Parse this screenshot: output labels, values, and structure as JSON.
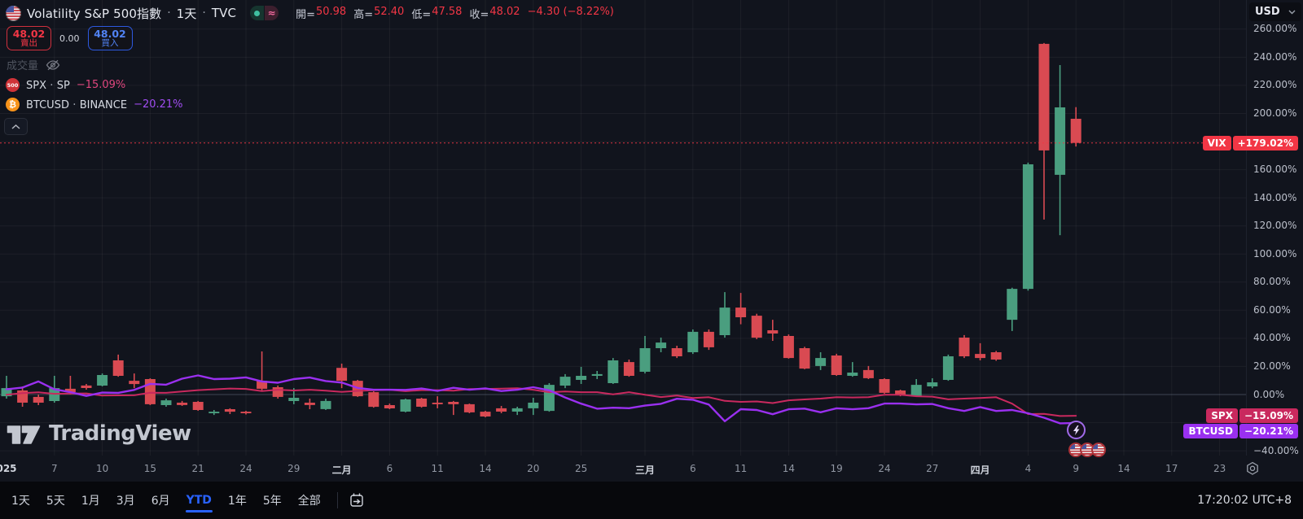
{
  "header": {
    "flag_icon": "us-flag",
    "title": "Volatility S&P 500指數",
    "sep": "·",
    "interval": "1天",
    "exchange": "TVC",
    "status_pills": {
      "market_open": "dot",
      "delayed": "≈"
    },
    "ohlc": {
      "open_label": "開=",
      "open": "50.98",
      "high_label": "高=",
      "high": "52.40",
      "low_label": "低=",
      "low": "47.58",
      "close_label": "收=",
      "close": "48.02",
      "change": "−4.30 (−8.22%)"
    },
    "order_panel": {
      "sell_price": "48.02",
      "sell_label": "賣出",
      "spread": "0.00",
      "buy_price": "48.02",
      "buy_label": "買入"
    },
    "volume_label": "成交量",
    "compare_series": [
      {
        "symbol": "SPX",
        "source": "SP",
        "change": "−15.09%",
        "icon_text": "500"
      },
      {
        "symbol": "BTCUSD",
        "source": "BINANCE",
        "change": "−20.21%",
        "icon_text": "₿"
      }
    ]
  },
  "watermark": {
    "text": "TradingView"
  },
  "price_scale": {
    "currency": "USD",
    "ticks_pct": [
      260,
      240,
      220,
      200,
      160,
      140,
      120,
      100,
      80,
      60,
      40,
      20,
      0,
      -40
    ],
    "badges": [
      {
        "label": "VIX",
        "value": "+179.02%",
        "pct": 179.02,
        "color": "#f23645"
      },
      {
        "label": "SPX",
        "value": "−15.09%",
        "pct": -15.09,
        "color": "#c9295e"
      },
      {
        "label": "BTCUSD",
        "value": "−20.21%",
        "pct": -20.21,
        "color": "#9a30f0"
      }
    ]
  },
  "time_axis": {
    "ticks": [
      {
        "bar": 0,
        "text": "025",
        "month": true
      },
      {
        "bar": 3,
        "text": "7"
      },
      {
        "bar": 6,
        "text": "10"
      },
      {
        "bar": 9,
        "text": "15"
      },
      {
        "bar": 12,
        "text": "21"
      },
      {
        "bar": 15,
        "text": "24"
      },
      {
        "bar": 18,
        "text": "29"
      },
      {
        "bar": 21,
        "text": "二月",
        "month": true
      },
      {
        "bar": 24,
        "text": "6"
      },
      {
        "bar": 27,
        "text": "11"
      },
      {
        "bar": 30,
        "text": "14"
      },
      {
        "bar": 33,
        "text": "20"
      },
      {
        "bar": 36,
        "text": "25"
      },
      {
        "bar": 40,
        "text": "三月",
        "month": true
      },
      {
        "bar": 43,
        "text": "6"
      },
      {
        "bar": 46,
        "text": "11"
      },
      {
        "bar": 49,
        "text": "14"
      },
      {
        "bar": 52,
        "text": "19"
      },
      {
        "bar": 55,
        "text": "24"
      },
      {
        "bar": 58,
        "text": "27"
      },
      {
        "bar": 61,
        "text": "四月",
        "month": true
      },
      {
        "bar": 64,
        "text": "4"
      },
      {
        "bar": 67,
        "text": "9"
      },
      {
        "bar": 70,
        "text": "14"
      },
      {
        "bar": 73,
        "text": "17"
      },
      {
        "bar": 76,
        "text": "23"
      }
    ]
  },
  "toolbar": {
    "ranges": [
      "1天",
      "5天",
      "1月",
      "3月",
      "6月",
      "YTD",
      "1年",
      "5年",
      "全部"
    ],
    "active_range": "YTD",
    "clock": "17:20:02 UTC+8"
  },
  "chart_data": {
    "type": "candlestick",
    "symbol": "VIX",
    "exchange": "TVC",
    "interval": "1天",
    "value_scale": "percent change YTD",
    "unit": "%",
    "ylim": [
      -43,
      281
    ],
    "grid": true,
    "last_close_pct": 179.02,
    "colors": {
      "up": "#4a9e7f",
      "down": "#d94a52",
      "close_line": "#f23645"
    },
    "dates": [
      "01-02",
      "01-03",
      "01-06",
      "01-07",
      "01-08",
      "01-09",
      "01-10",
      "01-13",
      "01-14",
      "01-15",
      "01-16",
      "01-17",
      "01-21",
      "01-22",
      "01-23",
      "01-24",
      "01-27",
      "01-28",
      "01-29",
      "01-30",
      "01-31",
      "02-03",
      "02-04",
      "02-05",
      "02-06",
      "02-07",
      "02-10",
      "02-11",
      "02-12",
      "02-13",
      "02-14",
      "02-18",
      "02-19",
      "02-20",
      "02-21",
      "02-24",
      "02-25",
      "02-26",
      "02-27",
      "02-28",
      "03-03",
      "03-04",
      "03-05",
      "03-06",
      "03-07",
      "03-10",
      "03-11",
      "03-12",
      "03-13",
      "03-14",
      "03-17",
      "03-18",
      "03-19",
      "03-20",
      "03-21",
      "03-24",
      "03-25",
      "03-26",
      "03-27",
      "03-28",
      "03-31",
      "04-01",
      "04-02",
      "04-03",
      "04-04",
      "04-07",
      "04-08",
      "04-09"
    ],
    "bars": [
      [
        -1.2,
        13.3,
        -2.9,
        4.6
      ],
      [
        2.9,
        5.8,
        -8.7,
        -5.8
      ],
      [
        -1.7,
        0.0,
        -7.5,
        -5.8
      ],
      [
        -4.6,
        13.3,
        -5.8,
        4.6
      ],
      [
        4.1,
        13.3,
        0.0,
        1.7
      ],
      [
        6.4,
        7.5,
        3.5,
        4.6
      ],
      [
        6.4,
        15.0,
        5.8,
        13.9
      ],
      [
        24.3,
        28.4,
        12.7,
        13.3
      ],
      [
        9.8,
        15.0,
        4.6,
        7.5
      ],
      [
        11.0,
        11.6,
        -7.5,
        -6.9
      ],
      [
        -7.5,
        -2.9,
        -8.7,
        -4.1
      ],
      [
        -5.8,
        -4.6,
        -8.1,
        -7.5
      ],
      [
        -5.2,
        -4.6,
        -11.6,
        -11.0
      ],
      [
        -13.3,
        -11.0,
        -14.5,
        -12.2
      ],
      [
        -10.4,
        -9.8,
        -13.9,
        -12.2
      ],
      [
        -12.2,
        -11.6,
        -14.2,
        -13.3
      ],
      [
        9.8,
        30.7,
        2.9,
        4.1
      ],
      [
        5.2,
        6.4,
        -2.9,
        -1.7
      ],
      [
        -4.6,
        4.6,
        -6.9,
        -2.3
      ],
      [
        -5.8,
        -2.9,
        -10.4,
        -7.5
      ],
      [
        -10.4,
        -2.9,
        -11.0,
        -4.6
      ],
      [
        19.0,
        22.0,
        4.6,
        9.8
      ],
      [
        9.8,
        10.4,
        -1.7,
        -1.2
      ],
      [
        1.7,
        2.3,
        -9.3,
        -8.7
      ],
      [
        -7.5,
        -6.4,
        -10.4,
        -9.8
      ],
      [
        -12.2,
        -2.9,
        -12.7,
        -3.5
      ],
      [
        -2.9,
        -2.3,
        -9.3,
        -8.7
      ],
      [
        -5.8,
        -1.2,
        -9.8,
        -6.9
      ],
      [
        -5.2,
        -4.6,
        -14.5,
        -6.9
      ],
      [
        -6.9,
        -6.4,
        -13.3,
        -12.7
      ],
      [
        -12.2,
        -11.6,
        -16.2,
        -15.6
      ],
      [
        -9.8,
        -8.1,
        -13.3,
        -12.2
      ],
      [
        -12.2,
        -8.7,
        -14.5,
        -9.8
      ],
      [
        -9.8,
        -2.3,
        -14.5,
        -5.8
      ],
      [
        -11.6,
        8.1,
        -12.2,
        6.9
      ],
      [
        6.4,
        14.5,
        4.6,
        12.7
      ],
      [
        10.4,
        19.7,
        7.5,
        13.3
      ],
      [
        13.3,
        16.8,
        11.0,
        14.5
      ],
      [
        8.1,
        26.0,
        7.5,
        24.3
      ],
      [
        23.1,
        24.9,
        12.7,
        13.3
      ],
      [
        16.2,
        41.7,
        15.0,
        33.0
      ],
      [
        33.0,
        40.5,
        30.1,
        37.0
      ],
      [
        33.0,
        34.7,
        26.0,
        27.2
      ],
      [
        30.1,
        46.3,
        28.9,
        44.6
      ],
      [
        44.6,
        46.3,
        31.8,
        33.6
      ],
      [
        42.3,
        72.9,
        40.5,
        61.9
      ],
      [
        61.9,
        72.3,
        50.0,
        55.0
      ],
      [
        56.1,
        57.5,
        39.4,
        40.5
      ],
      [
        45.7,
        53.2,
        38.2,
        43.4
      ],
      [
        41.7,
        42.8,
        25.5,
        26.0
      ],
      [
        33.0,
        34.0,
        18.0,
        18.5
      ],
      [
        20.3,
        30.1,
        17.4,
        26.0
      ],
      [
        27.8,
        29.0,
        13.3,
        13.9
      ],
      [
        13.3,
        23.1,
        12.7,
        15.6
      ],
      [
        17.4,
        20.3,
        11.0,
        11.6
      ],
      [
        11.0,
        11.6,
        0.6,
        1.2
      ],
      [
        2.9,
        3.5,
        -1.2,
        -0.6
      ],
      [
        -1.2,
        11.0,
        -1.7,
        6.9
      ],
      [
        5.8,
        11.6,
        4.6,
        8.7
      ],
      [
        10.4,
        28.4,
        9.8,
        27.2
      ],
      [
        40.5,
        42.3,
        26.0,
        27.2
      ],
      [
        28.9,
        36.5,
        24.3,
        26.0
      ],
      [
        30.1,
        31.0,
        24.0,
        24.9
      ],
      [
        53.2,
        76.0,
        45.2,
        75.2
      ],
      [
        75.2,
        165.0,
        74.0,
        163.8
      ],
      [
        249.5,
        250.1,
        124.5,
        173.7
      ],
      [
        156.3,
        234.4,
        113.4,
        204.3
      ],
      [
        196.2,
        204.5,
        176.5,
        179.0
      ]
    ],
    "overlays": [
      {
        "name": "SPX",
        "color": "#c9295e",
        "last": -15.09,
        "values": [
          -0.2,
          1.0,
          1.6,
          0.5,
          0.7,
          0.8,
          -0.7,
          -0.6,
          -0.5,
          1.3,
          1.2,
          2.2,
          3.1,
          3.7,
          4.3,
          4.0,
          2.5,
          3.4,
          2.9,
          3.4,
          2.7,
          1.9,
          2.6,
          3.0,
          3.4,
          2.4,
          3.1,
          3.1,
          2.8,
          3.9,
          4.0,
          4.2,
          4.5,
          3.4,
          1.7,
          2.2,
          1.7,
          1.7,
          0.1,
          1.7,
          -0.1,
          -1.8,
          -0.7,
          -2.5,
          -1.9,
          -4.5,
          -5.2,
          -4.9,
          -6.1,
          -4.1,
          -3.5,
          -2.9,
          -1.9,
          -2.1,
          -1.9,
          -0.2,
          -0.1,
          -1.2,
          -1.5,
          -3.4,
          -2.9,
          -2.5,
          -1.9,
          -6.5,
          -13.9,
          -13.7,
          -15.3,
          -15.1
        ]
      },
      {
        "name": "BTCUSD",
        "color": "#9a30f0",
        "last": -20.21,
        "values": [
          3.7,
          5.0,
          9.3,
          3.7,
          1.7,
          -1.0,
          1.4,
          1.2,
          3.3,
          7.6,
          7.0,
          11.3,
          13.6,
          11.0,
          11.3,
          12.2,
          9.3,
          8.4,
          11.0,
          12.1,
          9.6,
          8.5,
          4.7,
          3.4,
          3.4,
          3.3,
          4.3,
          2.6,
          4.8,
          3.4,
          4.4,
          2.5,
          3.4,
          5.2,
          3.0,
          -2.1,
          -6.5,
          -10.1,
          -9.4,
          -9.7,
          -7.9,
          -6.6,
          -3.0,
          -3.7,
          -7.1,
          -19.0,
          -10.4,
          -11.0,
          -14.0,
          -10.5,
          -10.0,
          -12.6,
          -9.8,
          -10.5,
          -9.7,
          -6.4,
          -6.4,
          -7.0,
          -6.7,
          -9.7,
          -11.7,
          -8.9,
          -11.7,
          -11.0,
          -13.3,
          -16.5,
          -20.5,
          -20.2
        ]
      }
    ],
    "event_markers": {
      "lightning_bar": 67,
      "flag_bars": [
        67,
        68,
        69
      ]
    },
    "total_slots": 79
  }
}
